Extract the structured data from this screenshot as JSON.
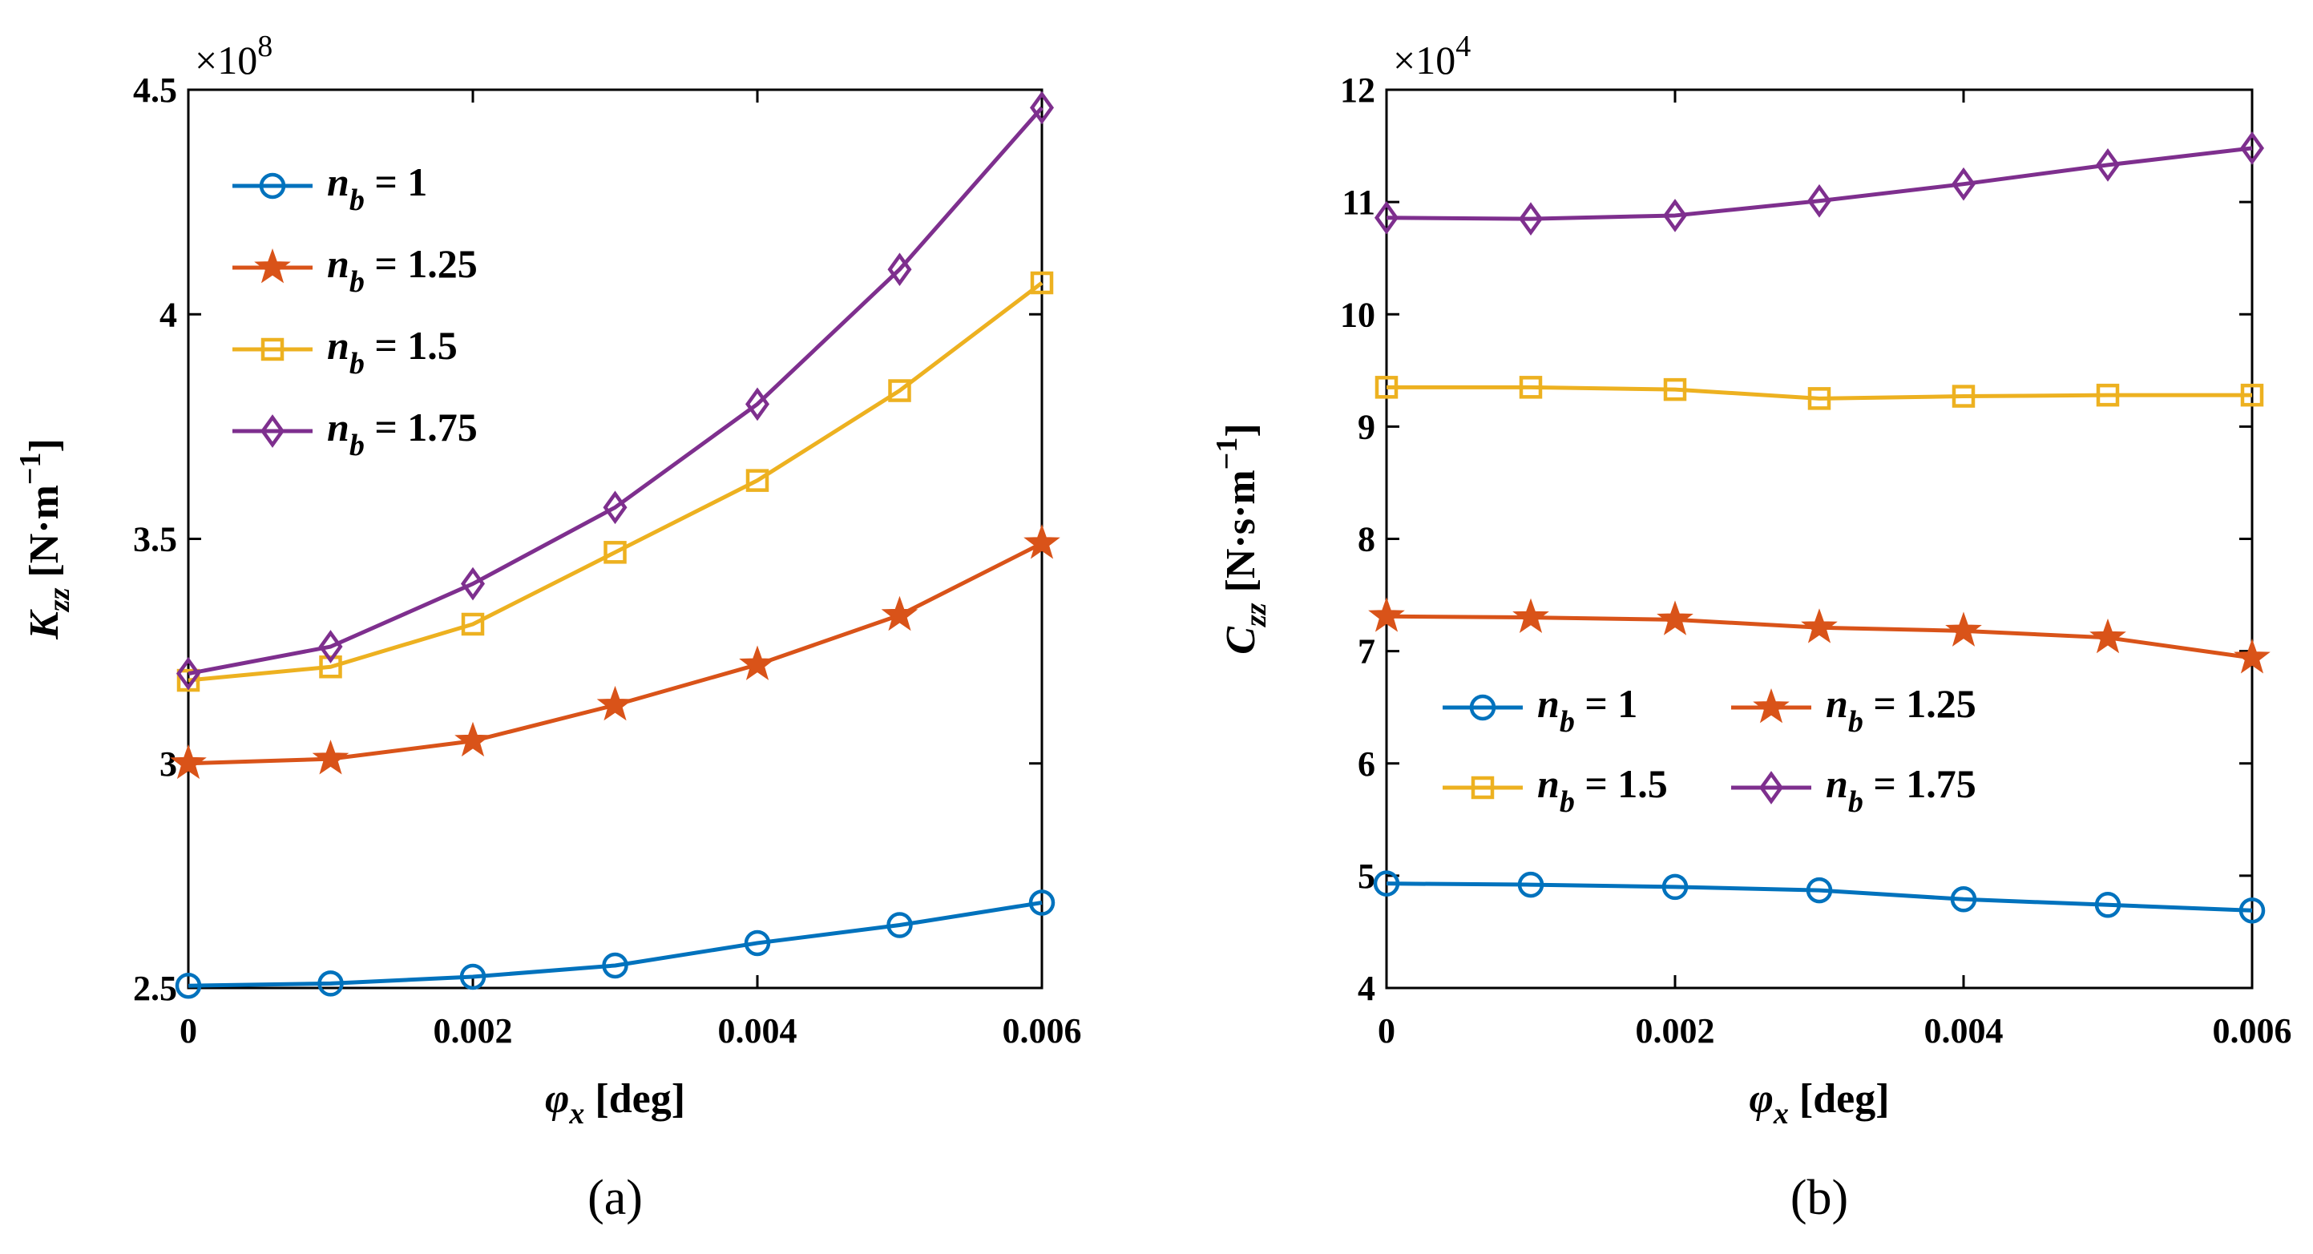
{
  "chart_data": [
    {
      "type": "line",
      "caption": "(a)",
      "multiplier": {
        "base": "×10",
        "exponent": "8"
      },
      "x": [
        0,
        0.001,
        0.002,
        0.003,
        0.004,
        0.005,
        0.006
      ],
      "xlim": [
        0,
        0.006
      ],
      "ylim": [
        2.5,
        4.5
      ],
      "xticks": [
        0,
        0.002,
        0.004,
        0.006
      ],
      "xtick_labels": [
        "0",
        "0.002",
        "0.004",
        "0.006"
      ],
      "yticks": [
        2.5,
        3,
        3.5,
        4,
        4.5
      ],
      "ytick_labels": [
        "2.5",
        "3",
        "3.5",
        "4",
        "4.5"
      ],
      "xlabel": {
        "sym": "φ",
        "sub": "x",
        "unit": " [deg]"
      },
      "ylabel": {
        "sym": "K",
        "sub": "zz",
        "unit_pre": " [N·m",
        "unit_sup": "−1",
        "unit_post": "]"
      },
      "legend": {
        "placement": "top-left",
        "columns": 1,
        "order": [
          0,
          1,
          2,
          3
        ]
      },
      "series": [
        {
          "name": "n_b = 1",
          "label_sym": "n",
          "label_sub": "b",
          "label_rest": " = 1",
          "color": "#0072BD",
          "marker": "circle",
          "values": [
            2.505,
            2.51,
            2.525,
            2.55,
            2.6,
            2.64,
            2.69
          ]
        },
        {
          "name": "n_b = 1.25",
          "label_sym": "n",
          "label_sub": "b",
          "label_rest": " = 1.25",
          "color": "#D95319",
          "marker": "star",
          "values": [
            3.0,
            3.01,
            3.05,
            3.13,
            3.22,
            3.33,
            3.49
          ]
        },
        {
          "name": "n_b = 1.5",
          "label_sym": "n",
          "label_sub": "b",
          "label_rest": " = 1.5",
          "color": "#EDB120",
          "marker": "square",
          "values": [
            3.185,
            3.215,
            3.31,
            3.47,
            3.63,
            3.83,
            4.07
          ]
        },
        {
          "name": "n_b = 1.75",
          "label_sym": "n",
          "label_sub": "b",
          "label_rest": " = 1.75",
          "color": "#7E2F8E",
          "marker": "diamond",
          "values": [
            3.2,
            3.26,
            3.4,
            3.57,
            3.8,
            4.1,
            4.46
          ]
        }
      ]
    },
    {
      "type": "line",
      "caption": "(b)",
      "multiplier": {
        "base": "×10",
        "exponent": "4"
      },
      "x": [
        0,
        0.001,
        0.002,
        0.003,
        0.004,
        0.005,
        0.006
      ],
      "xlim": [
        0,
        0.006
      ],
      "ylim": [
        4,
        12
      ],
      "xticks": [
        0,
        0.002,
        0.004,
        0.006
      ],
      "xtick_labels": [
        "0",
        "0.002",
        "0.004",
        "0.006"
      ],
      "yticks": [
        4,
        5,
        6,
        7,
        8,
        9,
        10,
        11,
        12
      ],
      "ytick_labels": [
        "4",
        "5",
        "6",
        "7",
        "8",
        "9",
        "10",
        "11",
        "12"
      ],
      "xlabel": {
        "sym": "φ",
        "sub": "x",
        "unit": " [deg]"
      },
      "ylabel": {
        "sym": "C",
        "sub": "zz",
        "unit_pre": " [N·s·m",
        "unit_sup": "−1",
        "unit_post": "]"
      },
      "legend": {
        "placement": "middle-right",
        "columns": 2,
        "order": [
          0,
          2,
          1,
          3
        ]
      },
      "series": [
        {
          "name": "n_b = 1",
          "label_sym": "n",
          "label_sub": "b",
          "label_rest": " = 1",
          "color": "#0072BD",
          "marker": "circle",
          "values": [
            4.93,
            4.92,
            4.9,
            4.87,
            4.79,
            4.74,
            4.69
          ]
        },
        {
          "name": "n_b = 1.25",
          "label_sym": "n",
          "label_sub": "b",
          "label_rest": " = 1.25",
          "color": "#D95319",
          "marker": "star",
          "values": [
            7.31,
            7.3,
            7.28,
            7.21,
            7.18,
            7.12,
            6.94
          ]
        },
        {
          "name": "n_b = 1.5",
          "label_sym": "n",
          "label_sub": "b",
          "label_rest": " = 1.5",
          "color": "#EDB120",
          "marker": "square",
          "values": [
            9.35,
            9.35,
            9.33,
            9.25,
            9.27,
            9.28,
            9.28
          ]
        },
        {
          "name": "n_b = 1.75",
          "label_sym": "n",
          "label_sub": "b",
          "label_rest": " = 1.75",
          "color": "#7E2F8E",
          "marker": "diamond",
          "values": [
            10.86,
            10.85,
            10.88,
            11.01,
            11.16,
            11.33,
            11.48
          ]
        }
      ]
    }
  ]
}
